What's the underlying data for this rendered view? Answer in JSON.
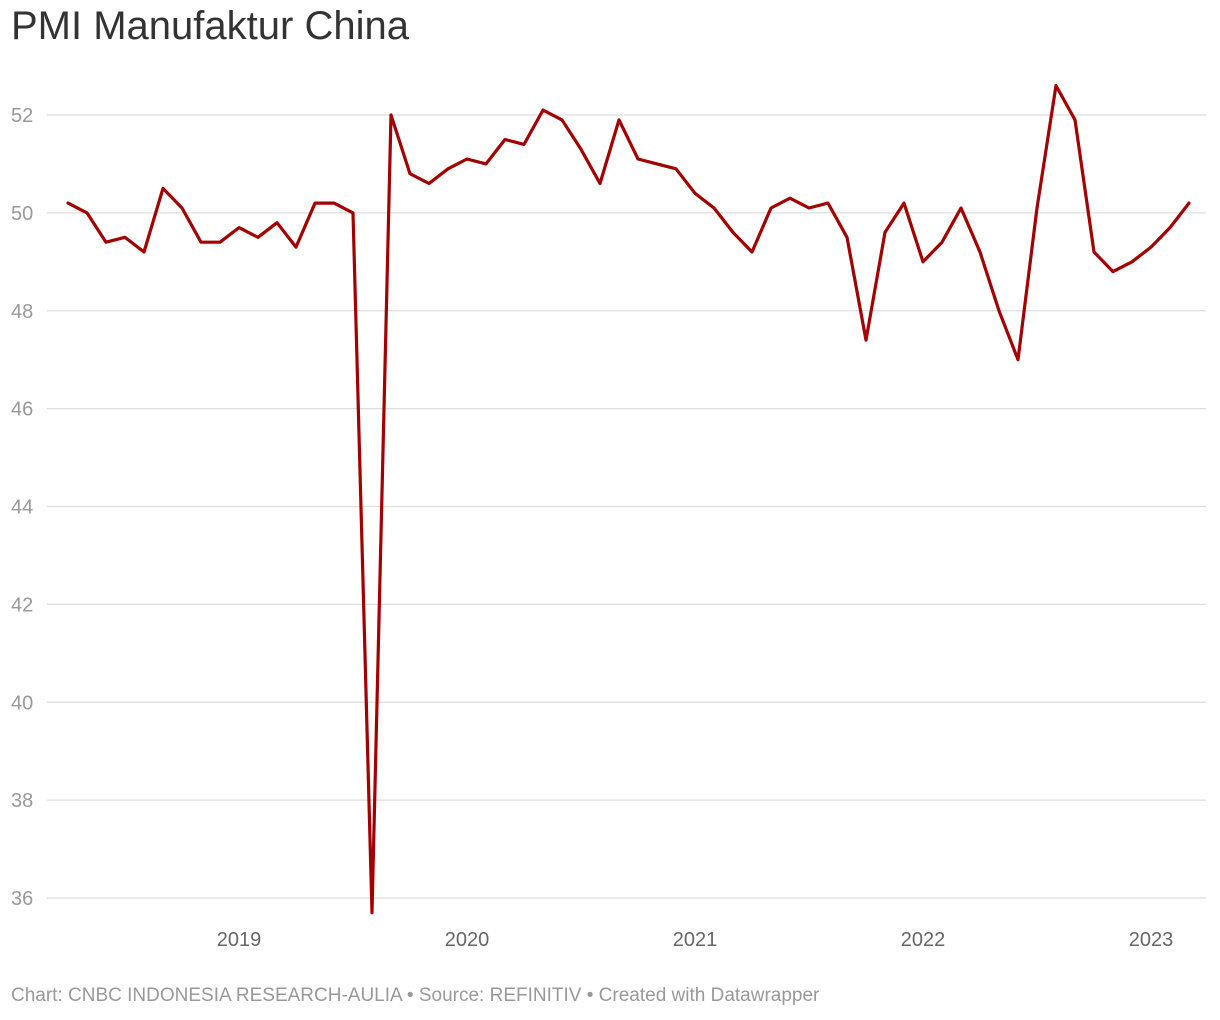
{
  "title": "PMI Manufaktur China",
  "footer": {
    "text": "Chart: CNBC INDONESIA RESEARCH-AULIA • Source: REFINITIV • Created with Datawrapper"
  },
  "colors": {
    "line": "#a50000",
    "grid": "#dddddd",
    "tick_text": "#999999",
    "x_tick_text": "#666666",
    "title": "#333333"
  },
  "chart_data": {
    "type": "line",
    "title": "PMI Manufaktur China",
    "xlabel": "",
    "ylabel": "",
    "ylim": [
      35.7,
      52.8
    ],
    "y_ticks": [
      36,
      38,
      40,
      42,
      44,
      46,
      48,
      50,
      52
    ],
    "x_ticks": [
      "2019",
      "2020",
      "2021",
      "2022",
      "2023"
    ],
    "grid": true,
    "legend": "none",
    "series": [
      {
        "name": "",
        "x": [
          "2018-10",
          "2018-11",
          "2018-12",
          "2019-01",
          "2019-02",
          "2019-03",
          "2019-04",
          "2019-05",
          "2019-06",
          "2019-07",
          "2019-08",
          "2019-09",
          "2019-10",
          "2019-11",
          "2019-12",
          "2020-01",
          "2020-02",
          "2020-03",
          "2020-04",
          "2020-05",
          "2020-06",
          "2020-07",
          "2020-08",
          "2020-09",
          "2020-10",
          "2020-11",
          "2020-12",
          "2021-01",
          "2021-02",
          "2021-03",
          "2021-04",
          "2021-05",
          "2021-06",
          "2021-07",
          "2021-08",
          "2021-09",
          "2021-10",
          "2021-11",
          "2021-12",
          "2022-01",
          "2022-02",
          "2022-03",
          "2022-04",
          "2022-05",
          "2022-06",
          "2022-07",
          "2022-08",
          "2022-09",
          "2022-10",
          "2022-11",
          "2022-12",
          "2023-01",
          "2023-02",
          "2023-03",
          "2023-04",
          "2023-05",
          "2023-06",
          "2023-07",
          "2023-08",
          "2023-09"
        ],
        "values": [
          50.2,
          50.0,
          49.4,
          49.5,
          49.2,
          50.5,
          50.1,
          49.4,
          49.4,
          49.7,
          49.5,
          49.8,
          49.3,
          50.2,
          50.2,
          50.0,
          35.7,
          52.0,
          50.8,
          50.6,
          50.9,
          51.1,
          51.0,
          51.5,
          51.4,
          52.1,
          51.9,
          51.3,
          50.6,
          51.9,
          51.1,
          51.0,
          50.9,
          50.4,
          50.1,
          49.6,
          49.2,
          50.1,
          50.3,
          50.1,
          50.2,
          49.5,
          47.4,
          49.6,
          50.2,
          49.0,
          49.4,
          50.1,
          49.2,
          48.0,
          47.0,
          50.1,
          52.6,
          51.9,
          49.2,
          48.8,
          49.0,
          49.3,
          49.7,
          50.2
        ]
      }
    ]
  }
}
